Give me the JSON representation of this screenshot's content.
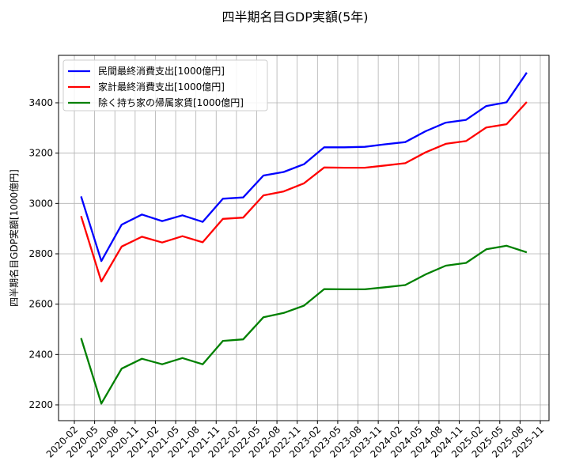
{
  "chart_data": {
    "type": "line",
    "title": "四半期名目GDP実額(5年)",
    "xlabel": "",
    "ylabel": "四半期名目GDP実額[1000億円]",
    "ylim": [
      2140,
      3560
    ],
    "grid": true,
    "legend_position": "upper left",
    "x": [
      "2020-03",
      "2020-06",
      "2020-09",
      "2020-12",
      "2021-03",
      "2021-06",
      "2021-09",
      "2021-12",
      "2022-03",
      "2022-06",
      "2022-09",
      "2022-12",
      "2023-03",
      "2023-06",
      "2023-09",
      "2023-12",
      "2024-03",
      "2024-06",
      "2024-09",
      "2024-12",
      "2025-03",
      "2025-06",
      "2025-09"
    ],
    "x_tick_labels": [
      "2020-02",
      "2020-05",
      "2020-08",
      "2020-11",
      "2021-02",
      "2021-05",
      "2021-08",
      "2021-11",
      "2022-02",
      "2022-05",
      "2022-08",
      "2022-11",
      "2023-02",
      "2023-05",
      "2023-08",
      "2023-11",
      "2024-02",
      "2024-05",
      "2024-08",
      "2024-11",
      "2025-02",
      "2025-05",
      "2025-08",
      "2025-11"
    ],
    "y_tick_labels": [
      "2200",
      "2400",
      "2600",
      "2800",
      "3000",
      "3200",
      "3400"
    ],
    "y_ticks": [
      2200,
      2400,
      2600,
      2800,
      3000,
      3200,
      3400
    ],
    "series": [
      {
        "name": "民間最終消費支出[1000億円]",
        "color": "#0000ff",
        "values": [
          3028,
          2771,
          2916,
          2956,
          2930,
          2953,
          2927,
          3019,
          3024,
          3111,
          3125,
          3156,
          3223,
          3223,
          3225,
          3235,
          3244,
          3287,
          3321,
          3332,
          3387,
          3402,
          3520
        ]
      },
      {
        "name": "家計最終消費支出[1000億円]",
        "color": "#ff0000",
        "values": [
          2950,
          2690,
          2829,
          2868,
          2845,
          2870,
          2846,
          2939,
          2944,
          3032,
          3048,
          3080,
          3143,
          3142,
          3142,
          3151,
          3160,
          3203,
          3237,
          3248,
          3302,
          3315,
          3403
        ]
      },
      {
        "name": "除く持ち家の帰属家賃[1000億円]",
        "color": "#008000",
        "values": [
          2465,
          2205,
          2344,
          2383,
          2361,
          2386,
          2361,
          2454,
          2460,
          2548,
          2565,
          2594,
          2660,
          2659,
          2659,
          2667,
          2676,
          2718,
          2753,
          2764,
          2818,
          2832,
          2806
        ]
      }
    ]
  }
}
